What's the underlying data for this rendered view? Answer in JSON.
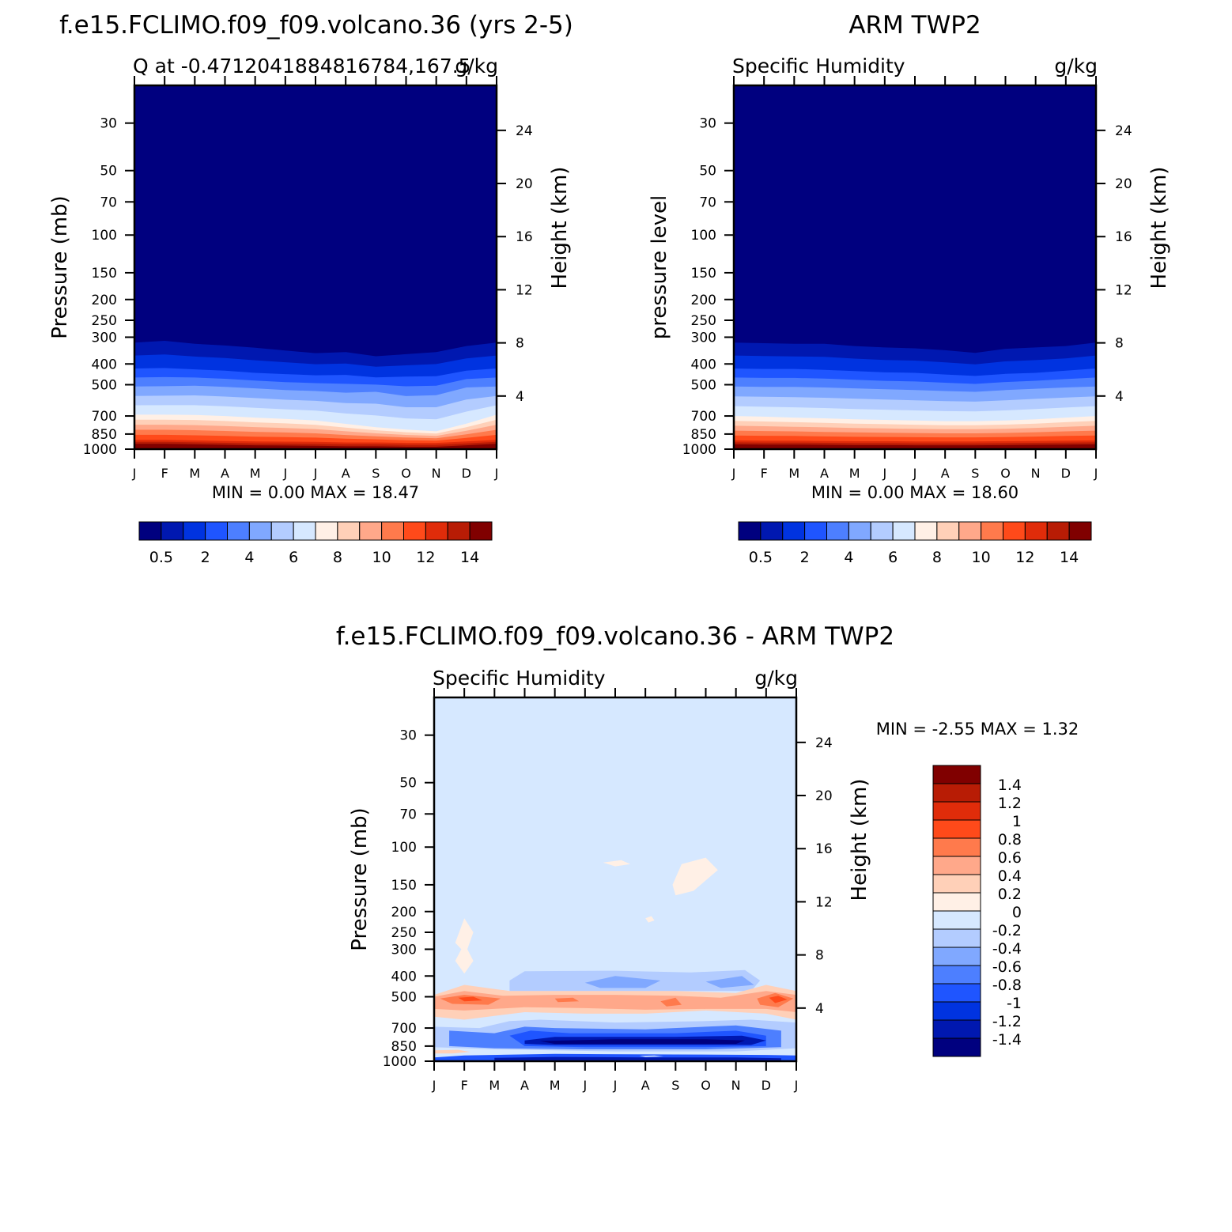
{
  "page": {
    "model_title": "f.e15.FCLIMO.f09_f09.volcano.36 (yrs 2-5)",
    "obs_title": "ARM TWP2",
    "diff_title": "f.e15.FCLIMO.f09_f09.volcano.36 - ARM TWP2"
  },
  "chart_data": [
    {
      "type": "heatmap",
      "id": "model",
      "left_label": "Q at -0.4712041884816784,167.5",
      "right_label": "g/kg",
      "ylabel": "Pressure (mb)",
      "y2label": "Height (km)",
      "minmax": "MIN =    0.00 MAX =   18.47",
      "months": [
        "J",
        "F",
        "M",
        "A",
        "M",
        "J",
        "J",
        "A",
        "S",
        "O",
        "N",
        "D",
        "J"
      ],
      "pressure_ticks": [
        30,
        50,
        70,
        100,
        150,
        200,
        250,
        300,
        400,
        500,
        700,
        850,
        1000
      ],
      "height_ticks": [
        4,
        8,
        12,
        16,
        20,
        24
      ],
      "levels": [
        0.5,
        1,
        2,
        3,
        4,
        5,
        6,
        7,
        8,
        9,
        10,
        11,
        12,
        13,
        14
      ],
      "colorbar_labels": [
        "0.5",
        "2",
        "4",
        "6",
        "8",
        "10",
        "12",
        "14"
      ],
      "colors": [
        "#00007f",
        "#0018b0",
        "#0033e0",
        "#1f55ff",
        "#4d7fff",
        "#80a8ff",
        "#b3ccff",
        "#d6e8ff",
        "#fff0e6",
        "#ffd0b8",
        "#ffa88a",
        "#ff7a4c",
        "#ff4a1a",
        "#e02c0a",
        "#b81c05",
        "#800000"
      ],
      "contours": {
        "note": "pressure (mb) of selected isolines per month",
        "q_0.5": [
          318,
          312,
          322,
          328,
          336,
          346,
          356,
          352,
          368,
          360,
          352,
          330,
          318
        ],
        "q_2": [
          420,
          418,
          424,
          430,
          440,
          446,
          452,
          450,
          462,
          458,
          456,
          430,
          420
        ],
        "q_4": [
          510,
          508,
          505,
          512,
          520,
          530,
          535,
          545,
          540,
          565,
          560,
          515,
          510
        ],
        "q_7": [
          690,
          690,
          692,
          700,
          712,
          722,
          735,
          762,
          790,
          810,
          825,
          760,
          690
        ],
        "q_12": [
          905,
          905,
          910,
          915,
          920,
          922,
          925,
          930,
          930,
          935,
          935,
          920,
          905
        ]
      }
    },
    {
      "type": "heatmap",
      "id": "obs",
      "left_label": "Specific Humidity",
      "right_label": "g/kg",
      "ylabel": "pressure level",
      "y2label": "Height (km)",
      "minmax": "MIN =    0.00 MAX =   18.60",
      "months": [
        "J",
        "F",
        "M",
        "A",
        "M",
        "J",
        "J",
        "A",
        "S",
        "O",
        "N",
        "D",
        "J"
      ],
      "pressure_ticks": [
        30,
        50,
        70,
        100,
        150,
        200,
        250,
        300,
        400,
        500,
        700,
        850,
        1000
      ],
      "height_ticks": [
        4,
        8,
        12,
        16,
        20,
        24
      ],
      "levels": [
        0.5,
        1,
        2,
        3,
        4,
        5,
        6,
        7,
        8,
        9,
        10,
        11,
        12,
        13,
        14
      ],
      "colorbar_labels": [
        "0.5",
        "2",
        "4",
        "6",
        "8",
        "10",
        "12",
        "14"
      ],
      "colors": [
        "#00007f",
        "#0018b0",
        "#0033e0",
        "#1f55ff",
        "#4d7fff",
        "#80a8ff",
        "#b3ccff",
        "#d6e8ff",
        "#fff0e6",
        "#ffd0b8",
        "#ffa88a",
        "#ff7a4c",
        "#ff4a1a",
        "#e02c0a",
        "#b81c05",
        "#800000"
      ],
      "contours": {
        "note": "pressure (mb) of selected isolines per month",
        "q_0.5": [
          318,
          320,
          322,
          322,
          330,
          335,
          338,
          345,
          355,
          340,
          335,
          330,
          318
        ],
        "q_2": [
          420,
          422,
          422,
          426,
          432,
          438,
          440,
          448,
          455,
          445,
          440,
          430,
          420
        ],
        "q_4": [
          510,
          512,
          512,
          515,
          520,
          525,
          530,
          535,
          540,
          530,
          522,
          515,
          510
        ],
        "q_7": [
          700,
          705,
          712,
          718,
          725,
          730,
          735,
          740,
          740,
          735,
          725,
          712,
          700
        ],
        "q_12": [
          910,
          912,
          912,
          915,
          918,
          918,
          920,
          920,
          920,
          918,
          915,
          912,
          910
        ]
      }
    },
    {
      "type": "heatmap",
      "id": "diff",
      "left_label": "Specific Humidity",
      "right_label": "g/kg",
      "ylabel": "Pressure (mb)",
      "y2label": "Height (km)",
      "minmax": "MIN =   -2.55 MAX =    1.32",
      "months": [
        "J",
        "F",
        "M",
        "A",
        "M",
        "J",
        "J",
        "A",
        "S",
        "O",
        "N",
        "D",
        "J"
      ],
      "pressure_ticks": [
        30,
        50,
        70,
        100,
        150,
        200,
        250,
        300,
        400,
        500,
        700,
        850,
        1000
      ],
      "height_ticks": [
        4,
        8,
        12,
        16,
        20,
        24
      ],
      "levels": [
        -1.4,
        -1.2,
        -1,
        -0.8,
        -0.6,
        -0.4,
        -0.2,
        0,
        0.2,
        0.4,
        0.6,
        0.8,
        1,
        1.2,
        1.4
      ],
      "colorbar_labels": [
        "1.4",
        "1.2",
        "1",
        "0.8",
        "0.6",
        "0.4",
        "0.2",
        "0",
        "-0.2",
        "-0.4",
        "-0.6",
        "-0.8",
        "-1",
        "-1.2",
        "-1.4"
      ],
      "colors": [
        "#00007f",
        "#0018b0",
        "#0033e0",
        "#1f55ff",
        "#4d7fff",
        "#80a8ff",
        "#b3ccff",
        "#d6e8ff",
        "#fff0e6",
        "#ffd0b8",
        "#ffa88a",
        "#ff7a4c",
        "#ff4a1a",
        "#e02c0a",
        "#b81c05",
        "#800000"
      ]
    }
  ]
}
